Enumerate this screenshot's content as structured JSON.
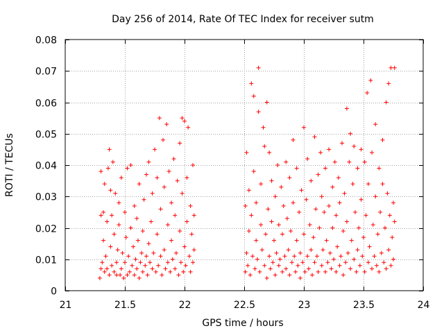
{
  "chart_data": {
    "type": "scatter",
    "title": "Day 256 of 2014, Rate Of TEC Index for receiver sutm",
    "xlabel": "GPS time / hours",
    "ylabel": "ROTI / TECUs",
    "xlim": [
      21,
      24
    ],
    "ylim": [
      0,
      0.08
    ],
    "x_ticks": [
      21,
      21.5,
      22,
      22.5,
      23,
      23.5,
      24
    ],
    "x_tick_labels": [
      "21",
      "21.5",
      "22",
      "22.5",
      "23",
      "23.5",
      "24"
    ],
    "y_ticks": [
      0,
      0.01,
      0.02,
      0.03,
      0.04,
      0.05,
      0.06,
      0.07,
      0.08
    ],
    "y_tick_labels": [
      "0",
      "0.01",
      "0.02",
      "0.03",
      "0.04",
      "0.05",
      "0.06",
      "0.07",
      "0.08"
    ],
    "grid": true,
    "marker": "+",
    "marker_color": "#ff0000",
    "series": [
      {
        "name": "ROTI",
        "points": [
          [
            21.29,
            0.004
          ],
          [
            21.3,
            0.007
          ],
          [
            21.3,
            0.024
          ],
          [
            21.3,
            0.038
          ],
          [
            21.31,
            0.009
          ],
          [
            21.32,
            0.016
          ],
          [
            21.32,
            0.025
          ],
          [
            21.33,
            0.006
          ],
          [
            21.33,
            0.034
          ],
          [
            21.34,
            0.011
          ],
          [
            21.35,
            0.022
          ],
          [
            21.35,
            0.007
          ],
          [
            21.36,
            0.039
          ],
          [
            21.37,
            0.005
          ],
          [
            21.37,
            0.045
          ],
          [
            21.38,
            0.014
          ],
          [
            21.38,
            0.032
          ],
          [
            21.39,
            0.008
          ],
          [
            21.39,
            0.024
          ],
          [
            21.4,
            0.041
          ],
          [
            21.41,
            0.006
          ],
          [
            21.41,
            0.018
          ],
          [
            21.42,
            0.031
          ],
          [
            21.43,
            0.009
          ],
          [
            21.43,
            0.005
          ],
          [
            21.44,
            0.013
          ],
          [
            21.45,
            0.021
          ],
          [
            21.45,
            0.028
          ],
          [
            21.46,
            0.005
          ],
          [
            21.47,
            0.007
          ],
          [
            21.47,
            0.036
          ],
          [
            21.48,
            0.012
          ],
          [
            21.49,
            0.004
          ],
          [
            21.5,
            0.009
          ],
          [
            21.5,
            0.025
          ],
          [
            21.51,
            0.017
          ],
          [
            21.52,
            0.005
          ],
          [
            21.52,
            0.039
          ],
          [
            21.53,
            0.011
          ],
          [
            21.54,
            0.006
          ],
          [
            21.55,
            0.02
          ],
          [
            21.55,
            0.04
          ],
          [
            21.56,
            0.008
          ],
          [
            21.57,
            0.014
          ],
          [
            21.58,
            0.005
          ],
          [
            21.58,
            0.027
          ],
          [
            21.59,
            0.01
          ],
          [
            21.6,
            0.007
          ],
          [
            21.6,
            0.023
          ],
          [
            21.61,
            0.016
          ],
          [
            21.62,
            0.004
          ],
          [
            21.62,
            0.034
          ],
          [
            21.63,
            0.009
          ],
          [
            21.64,
            0.012
          ],
          [
            21.65,
            0.006
          ],
          [
            21.65,
            0.019
          ],
          [
            21.66,
            0.029
          ],
          [
            21.67,
            0.008
          ],
          [
            21.68,
            0.011
          ],
          [
            21.68,
            0.037
          ],
          [
            21.69,
            0.005
          ],
          [
            21.7,
            0.015
          ],
          [
            21.7,
            0.041
          ],
          [
            21.71,
            0.009
          ],
          [
            21.72,
            0.022
          ],
          [
            21.73,
            0.007
          ],
          [
            21.73,
            0.031
          ],
          [
            21.74,
            0.012
          ],
          [
            21.75,
            0.045
          ],
          [
            21.76,
            0.006
          ],
          [
            21.77,
            0.018
          ],
          [
            21.77,
            0.036
          ],
          [
            21.78,
            0.008
          ],
          [
            21.79,
            0.055
          ],
          [
            21.8,
            0.011
          ],
          [
            21.8,
            0.026
          ],
          [
            21.81,
            0.005
          ],
          [
            21.82,
            0.048
          ],
          [
            21.83,
            0.013
          ],
          [
            21.83,
            0.033
          ],
          [
            21.84,
            0.007
          ],
          [
            21.85,
            0.053
          ],
          [
            21.86,
            0.021
          ],
          [
            21.86,
            0.009
          ],
          [
            21.87,
            0.038
          ],
          [
            21.88,
            0.006
          ],
          [
            21.89,
            0.016
          ],
          [
            21.89,
            0.028
          ],
          [
            21.9,
            0.01
          ],
          [
            21.91,
            0.042
          ],
          [
            21.92,
            0.007
          ],
          [
            21.92,
            0.024
          ],
          [
            21.93,
            0.012
          ],
          [
            21.94,
            0.035
          ],
          [
            21.95,
            0.005
          ],
          [
            21.96,
            0.019
          ],
          [
            21.96,
            0.047
          ],
          [
            21.97,
            0.009
          ],
          [
            21.98,
            0.055
          ],
          [
            21.98,
            0.031
          ],
          [
            21.99,
            0.006
          ],
          [
            22.0,
            0.014
          ],
          [
            22.0,
            0.054
          ],
          [
            22.01,
            0.008
          ],
          [
            22.02,
            0.036
          ],
          [
            22.02,
            0.022
          ],
          [
            22.03,
            0.052
          ],
          [
            22.04,
            0.011
          ],
          [
            22.05,
            0.027
          ],
          [
            22.05,
            0.006
          ],
          [
            22.06,
            0.018
          ],
          [
            22.07,
            0.009
          ],
          [
            22.07,
            0.04
          ],
          [
            22.08,
            0.013
          ],
          [
            22.08,
            0.024
          ],
          [
            22.51,
            0.006
          ],
          [
            22.51,
            0.027
          ],
          [
            22.52,
            0.012
          ],
          [
            22.52,
            0.044
          ],
          [
            22.53,
            0.008
          ],
          [
            22.54,
            0.019
          ],
          [
            22.54,
            0.032
          ],
          [
            22.55,
            0.005
          ],
          [
            22.56,
            0.024
          ],
          [
            22.56,
            0.066
          ],
          [
            22.57,
            0.011
          ],
          [
            22.58,
            0.038
          ],
          [
            22.58,
            0.062
          ],
          [
            22.59,
            0.007
          ],
          [
            22.6,
            0.016
          ],
          [
            22.6,
            0.028
          ],
          [
            22.61,
            0.01
          ],
          [
            22.62,
            0.057
          ],
          [
            22.62,
            0.071
          ],
          [
            22.63,
            0.006
          ],
          [
            22.64,
            0.021
          ],
          [
            22.64,
            0.034
          ],
          [
            22.65,
            0.013
          ],
          [
            22.66,
            0.052
          ],
          [
            22.67,
            0.008
          ],
          [
            22.67,
            0.046
          ],
          [
            22.68,
            0.018
          ],
          [
            22.69,
            0.06
          ],
          [
            22.69,
            0.004
          ],
          [
            22.7,
            0.026
          ],
          [
            22.71,
            0.011
          ],
          [
            22.71,
            0.044
          ],
          [
            22.72,
            0.007
          ],
          [
            22.73,
            0.022
          ],
          [
            22.73,
            0.035
          ],
          [
            22.74,
            0.009
          ],
          [
            22.75,
            0.016
          ],
          [
            22.76,
            0.03
          ],
          [
            22.76,
            0.005
          ],
          [
            22.77,
            0.012
          ],
          [
            22.78,
            0.04
          ],
          [
            22.79,
            0.008
          ],
          [
            22.79,
            0.021
          ],
          [
            22.8,
            0.01
          ],
          [
            22.81,
            0.033
          ],
          [
            22.82,
            0.006
          ],
          [
            22.82,
            0.018
          ],
          [
            22.83,
            0.027
          ],
          [
            22.84,
            0.011
          ],
          [
            22.85,
            0.041
          ],
          [
            22.85,
            0.007
          ],
          [
            22.86,
            0.023
          ],
          [
            22.87,
            0.013
          ],
          [
            22.88,
            0.036
          ],
          [
            22.88,
            0.005
          ],
          [
            22.89,
            0.019
          ],
          [
            22.9,
            0.009
          ],
          [
            22.91,
            0.048
          ],
          [
            22.91,
            0.028
          ],
          [
            22.92,
            0.011
          ],
          [
            22.93,
            0.006
          ],
          [
            22.94,
            0.016
          ],
          [
            22.94,
            0.039
          ],
          [
            22.95,
            0.008
          ],
          [
            22.96,
            0.025
          ],
          [
            22.97,
            0.012
          ],
          [
            22.97,
            0.004
          ],
          [
            22.98,
            0.032
          ],
          [
            22.99,
            0.009
          ],
          [
            23.0,
            0.018
          ],
          [
            23.0,
            0.052
          ],
          [
            23.01,
            0.006
          ],
          [
            23.02,
            0.029
          ],
          [
            23.03,
            0.011
          ],
          [
            23.03,
            0.042
          ],
          [
            23.04,
            0.007
          ],
          [
            23.05,
            0.021
          ],
          [
            23.06,
            0.013
          ],
          [
            23.06,
            0.035
          ],
          [
            23.07,
            0.005
          ],
          [
            23.08,
            0.017
          ],
          [
            23.09,
            0.009
          ],
          [
            23.09,
            0.049
          ],
          [
            23.1,
            0.026
          ],
          [
            23.11,
            0.011
          ],
          [
            23.12,
            0.037
          ],
          [
            23.12,
            0.006
          ],
          [
            23.13,
            0.02
          ],
          [
            23.14,
            0.044
          ],
          [
            23.15,
            0.008
          ],
          [
            23.15,
            0.03
          ],
          [
            23.16,
            0.013
          ],
          [
            23.17,
            0.025
          ],
          [
            23.18,
            0.006
          ],
          [
            23.18,
            0.039
          ],
          [
            23.19,
            0.016
          ],
          [
            23.2,
            0.009
          ],
          [
            23.21,
            0.027
          ],
          [
            23.21,
            0.045
          ],
          [
            23.22,
            0.012
          ],
          [
            23.23,
            0.007
          ],
          [
            23.24,
            0.033
          ],
          [
            23.24,
            0.02
          ],
          [
            23.25,
            0.01
          ],
          [
            23.26,
            0.041
          ],
          [
            23.27,
            0.006
          ],
          [
            23.27,
            0.024
          ],
          [
            23.28,
            0.014
          ],
          [
            23.29,
            0.036
          ],
          [
            23.3,
            0.008
          ],
          [
            23.3,
            0.028
          ],
          [
            23.31,
            0.011
          ],
          [
            23.32,
            0.047
          ],
          [
            23.33,
            0.005
          ],
          [
            23.33,
            0.019
          ],
          [
            23.34,
            0.031
          ],
          [
            23.35,
            0.009
          ],
          [
            23.36,
            0.058
          ],
          [
            23.36,
            0.022
          ],
          [
            23.37,
            0.012
          ],
          [
            23.38,
            0.041
          ],
          [
            23.39,
            0.007
          ],
          [
            23.39,
            0.05
          ],
          [
            23.4,
            0.016
          ],
          [
            23.41,
            0.034
          ],
          [
            23.42,
            0.01
          ],
          [
            23.42,
            0.046
          ],
          [
            23.43,
            0.025
          ],
          [
            23.44,
            0.006
          ],
          [
            23.45,
            0.013
          ],
          [
            23.45,
            0.039
          ],
          [
            23.46,
            0.02
          ],
          [
            23.47,
            0.008
          ],
          [
            23.48,
            0.045
          ],
          [
            23.48,
            0.029
          ],
          [
            23.49,
            0.011
          ],
          [
            23.5,
            0.017
          ],
          [
            23.51,
            0.006
          ],
          [
            23.51,
            0.041
          ],
          [
            23.52,
            0.024
          ],
          [
            23.53,
            0.063
          ],
          [
            23.54,
            0.009
          ],
          [
            23.54,
            0.034
          ],
          [
            23.55,
            0.014
          ],
          [
            23.56,
            0.067
          ],
          [
            23.57,
            0.007
          ],
          [
            23.57,
            0.044
          ],
          [
            23.58,
            0.021
          ],
          [
            23.59,
            0.011
          ],
          [
            23.6,
            0.053
          ],
          [
            23.6,
            0.03
          ],
          [
            23.61,
            0.008
          ],
          [
            23.62,
            0.018
          ],
          [
            23.63,
            0.039
          ],
          [
            23.63,
            0.006
          ],
          [
            23.64,
            0.025
          ],
          [
            23.65,
            0.012
          ],
          [
            23.66,
            0.048
          ],
          [
            23.66,
            0.034
          ],
          [
            23.67,
            0.009
          ],
          [
            23.68,
            0.02
          ],
          [
            23.69,
            0.06
          ],
          [
            23.69,
            0.007
          ],
          [
            23.7,
            0.031
          ],
          [
            23.71,
            0.013
          ],
          [
            23.71,
            0.066
          ],
          [
            23.72,
            0.024
          ],
          [
            23.73,
            0.008
          ],
          [
            23.73,
            0.071
          ],
          [
            23.74,
            0.017
          ],
          [
            23.75,
            0.028
          ],
          [
            23.75,
            0.01
          ],
          [
            23.76,
            0.071
          ],
          [
            23.76,
            0.022
          ]
        ]
      }
    ]
  }
}
